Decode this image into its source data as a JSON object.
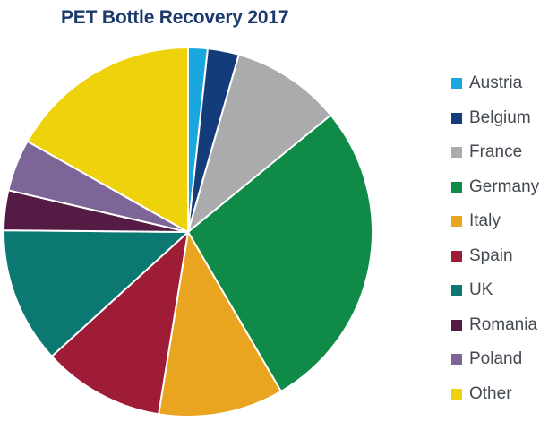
{
  "chart_data": {
    "type": "pie",
    "title": "PET Bottle Recovery 2017",
    "start_angle_deg": 0,
    "direction": "clockwise",
    "legend_position": "right",
    "slices": [
      {
        "label": "Austria",
        "value": 1.8,
        "color": "#1aa7e0"
      },
      {
        "label": "Belgium",
        "value": 2.9,
        "color": "#153c7a"
      },
      {
        "label": "France",
        "value": 10.2,
        "color": "#ababad"
      },
      {
        "label": "Germany",
        "value": 29.1,
        "color": "#0f8a47"
      },
      {
        "label": "Italy",
        "value": 11.6,
        "color": "#e9a520"
      },
      {
        "label": "Spain",
        "value": 11.3,
        "color": "#9e1c36"
      },
      {
        "label": "UK",
        "value": 12.6,
        "color": "#0c7872"
      },
      {
        "label": "Romania",
        "value": 3.7,
        "color": "#541c44"
      },
      {
        "label": "Poland",
        "value": 4.8,
        "color": "#7d6597"
      },
      {
        "label": "Other",
        "value": 17.8,
        "color": "#eed20b"
      }
    ]
  }
}
